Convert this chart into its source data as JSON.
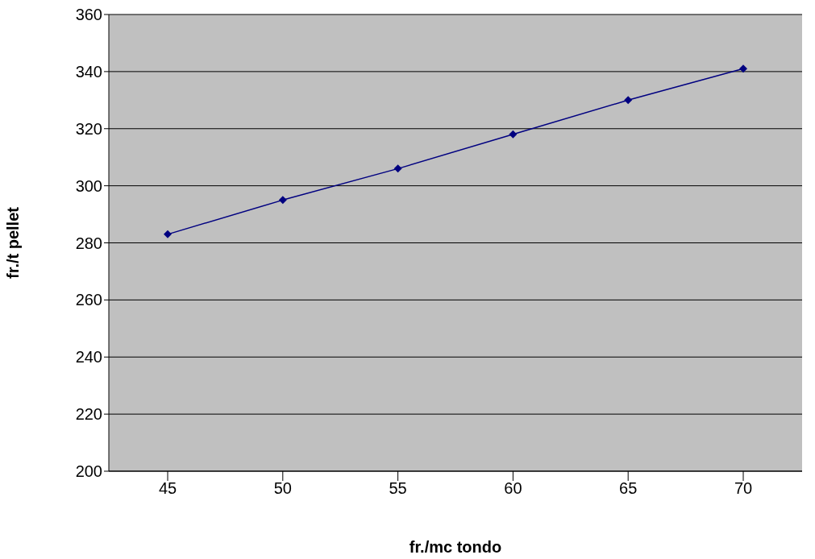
{
  "chart_data": {
    "type": "line",
    "xlabel": "fr./mc tondo",
    "ylabel": "fr./t pellet",
    "categories": [
      "45",
      "50",
      "55",
      "60",
      "65",
      "70"
    ],
    "series": [
      {
        "color": "#000080",
        "values": [
          283,
          295,
          306,
          318,
          330,
          341
        ]
      }
    ],
    "ylim": [
      200,
      360
    ],
    "yticks": [
      200,
      220,
      240,
      260,
      280,
      300,
      320,
      340,
      360
    ],
    "grid": "y",
    "marker": "diamond",
    "line_style": "solid",
    "legend": false
  }
}
